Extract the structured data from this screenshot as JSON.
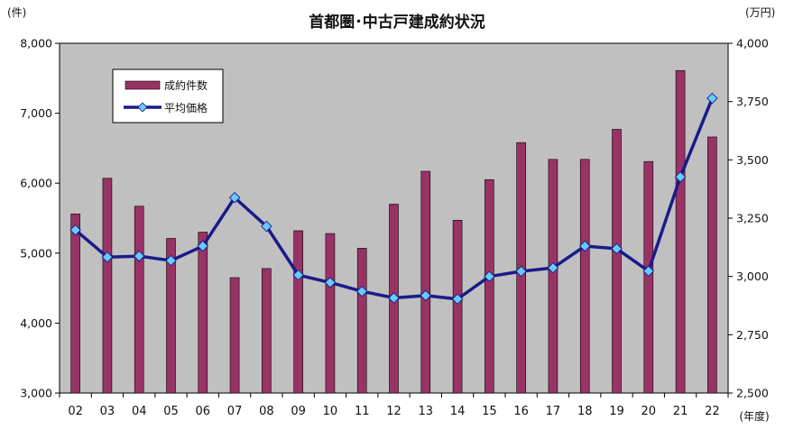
{
  "chart_data": {
    "type": "bar+line",
    "title": "首都圏･中古戸建成約状況",
    "left_unit": "(件)",
    "right_unit": "(万円)",
    "x_unit": "(年度)",
    "categories": [
      "02",
      "03",
      "04",
      "05",
      "06",
      "07",
      "08",
      "09",
      "10",
      "11",
      "12",
      "13",
      "14",
      "15",
      "16",
      "17",
      "18",
      "19",
      "20",
      "21",
      "22"
    ],
    "left_ylim": [
      3000,
      8000
    ],
    "left_ticks": [
      "3,000",
      "4,000",
      "5,000",
      "6,000",
      "7,000",
      "8,000"
    ],
    "right_ylim": [
      2500,
      4000
    ],
    "right_ticks": [
      "2,500",
      "2,750",
      "3,000",
      "3,250",
      "3,500",
      "3,750",
      "4,000"
    ],
    "series": [
      {
        "name": "成約件数",
        "type": "bar",
        "axis": "left",
        "color": "#993366",
        "values": [
          5560,
          6070,
          5670,
          5210,
          5300,
          4650,
          4780,
          5320,
          5280,
          5070,
          5700,
          6170,
          5470,
          6050,
          6580,
          6340,
          6340,
          6770,
          6310,
          7610,
          6660
        ]
      },
      {
        "name": "平均価格",
        "type": "line",
        "axis": "right",
        "color": "#1a1a8c",
        "marker_color": "#66ccff",
        "values": [
          3199,
          3083,
          3087,
          3068,
          3130,
          3338,
          3215,
          3006,
          2974,
          2936,
          2908,
          2918,
          2903,
          3000,
          3022,
          3037,
          3130,
          3119,
          3023,
          3427,
          3764
        ]
      }
    ],
    "legend_placement": "top-left",
    "grid": false,
    "plot_bg": "#c0c0c0"
  }
}
